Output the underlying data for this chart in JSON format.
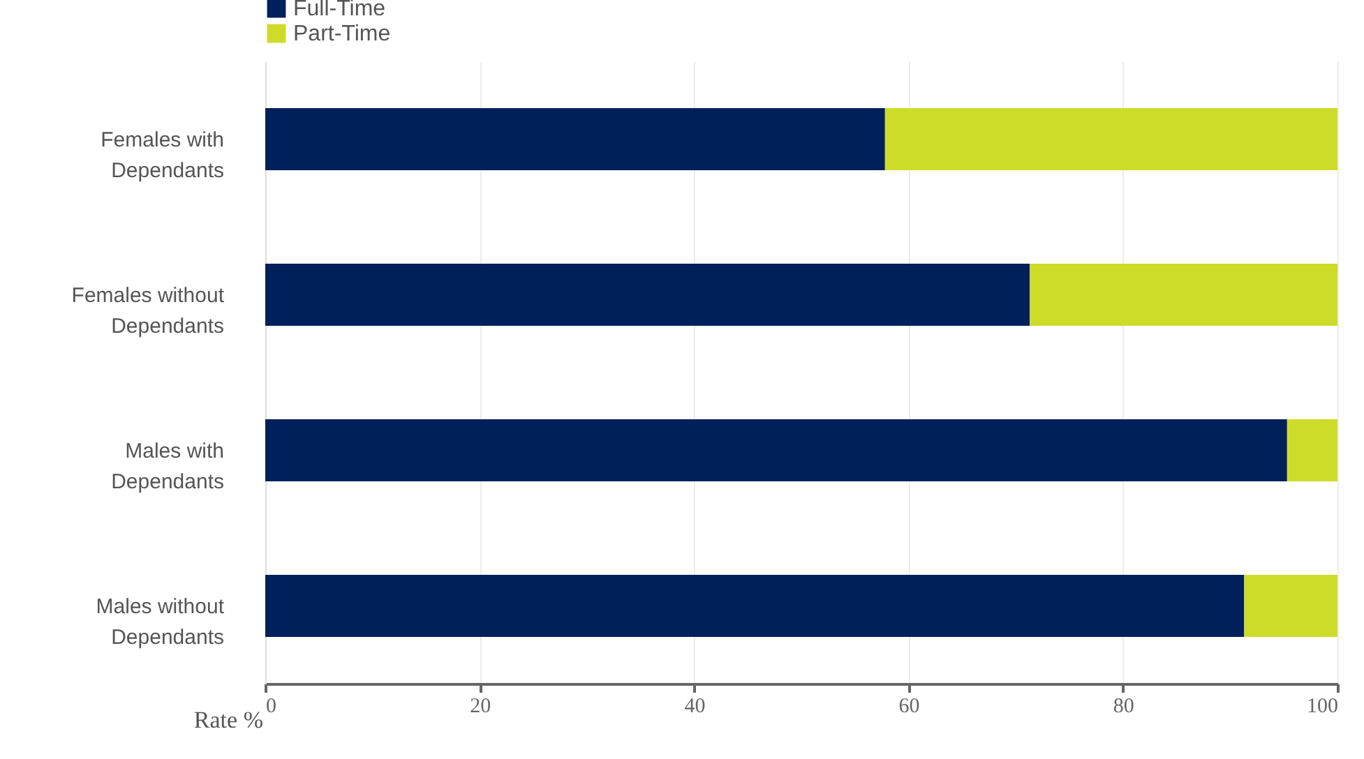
{
  "chart_data": {
    "type": "bar",
    "orientation": "horizontal",
    "stacked": true,
    "categories": [
      "Females with Dependants",
      "Females without Dependants",
      "Males with Dependants",
      "Males without Dependants"
    ],
    "series": [
      {
        "name": "Full-Time",
        "color": "#00205b",
        "values": [
          57.8,
          71.3,
          95.3,
          91.3
        ]
      },
      {
        "name": "Part-Time",
        "color": "#cddc29",
        "values": [
          42.2,
          28.7,
          4.7,
          8.7
        ]
      }
    ],
    "xlabel": "Rate %",
    "xlim": [
      0,
      100
    ],
    "xticks": [
      0,
      20,
      40,
      60,
      80,
      100
    ],
    "grid": "x",
    "legend": "top"
  }
}
